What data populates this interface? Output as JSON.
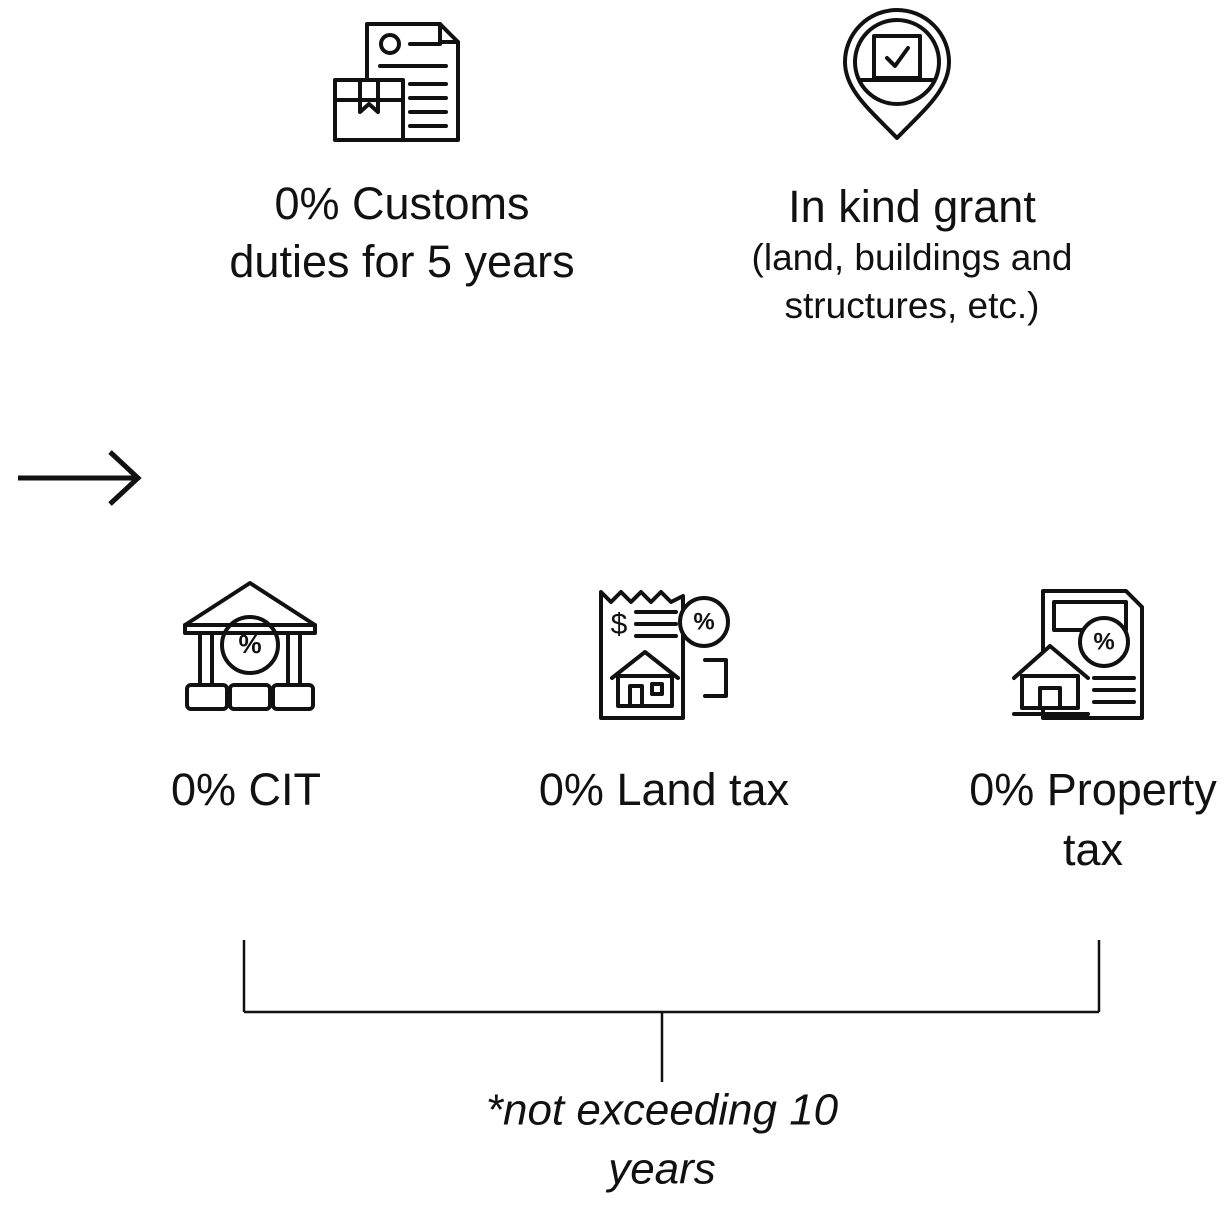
{
  "top_items": [
    {
      "lines": [
        "0% Customs",
        "duties for 5 years"
      ]
    },
    {
      "lines": [
        "In kind grant"
      ],
      "sub_lines": [
        "(land, buildings and",
        "structures, etc.)"
      ]
    }
  ],
  "bottom_items": [
    {
      "lines": [
        "0% CIT"
      ]
    },
    {
      "lines": [
        "0% Land tax"
      ]
    },
    {
      "lines": [
        "0% Property",
        "tax"
      ]
    }
  ],
  "note": {
    "lines": [
      "*not exceeding 10",
      "years"
    ]
  }
}
